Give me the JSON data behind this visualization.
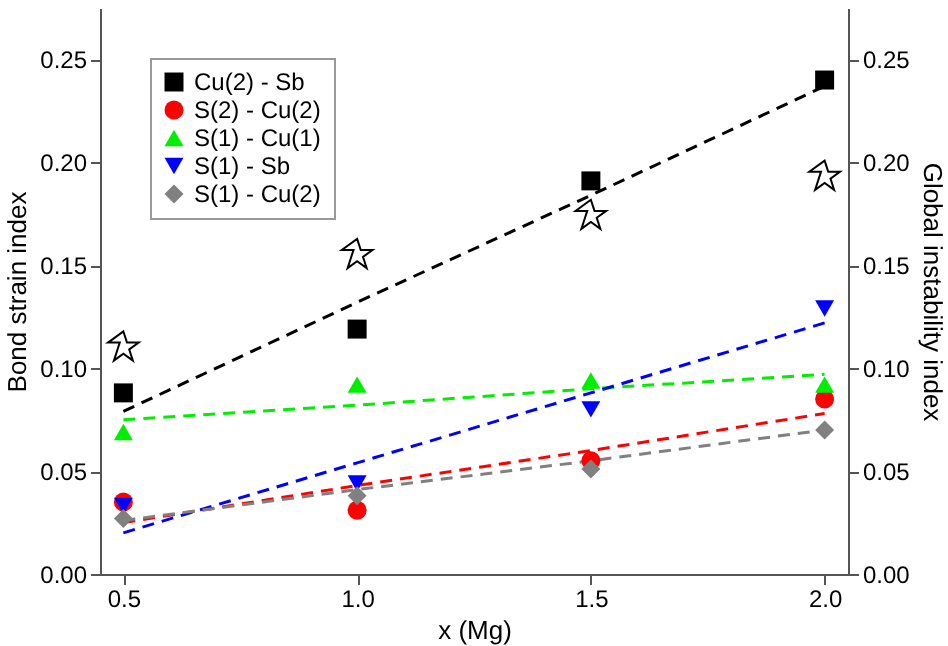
{
  "chart_data": {
    "type": "scatter",
    "xlabel": "x (Mg)",
    "ylabel": "Bond strain index",
    "y2label": "Global instability index",
    "x": [
      0.5,
      1.0,
      1.5,
      2.0
    ],
    "xlim": [
      0.45,
      2.05
    ],
    "xticks": [
      {
        "value": 0.5,
        "label": "0.5"
      },
      {
        "value": 1,
        "label": "1.0"
      },
      {
        "value": 1.5,
        "label": "1.5"
      },
      {
        "value": 2,
        "label": "2.0"
      }
    ],
    "ylim": [
      0,
      0.275
    ],
    "yticks": [
      {
        "value": 0,
        "label": "0.00"
      },
      {
        "value": 0.05,
        "label": "0.05"
      },
      {
        "value": 0.1,
        "label": "0.10"
      },
      {
        "value": 0.15,
        "label": "0.15"
      },
      {
        "value": 0.2,
        "label": "0.20"
      },
      {
        "value": 0.25,
        "label": "0.25"
      }
    ],
    "y2lim": [
      0,
      0.275
    ],
    "y2ticks": [
      {
        "value": 0,
        "label": "0.00"
      },
      {
        "value": 0.05,
        "label": "0.05"
      },
      {
        "value": 0.1,
        "label": "0.10"
      },
      {
        "value": 0.15,
        "label": "0.15"
      },
      {
        "value": 0.2,
        "label": "0.20"
      },
      {
        "value": 0.25,
        "label": "0.25"
      }
    ],
    "grid": false,
    "legend": "top left",
    "series": [
      {
        "name": "Cu(2) - Sb",
        "marker": "square",
        "color": "#000000",
        "values": [
          0.088,
          0.119,
          0.191,
          0.24
        ]
      },
      {
        "name": "S(2) - Cu(2)",
        "marker": "circle",
        "color": "#ff0000",
        "values": [
          0.035,
          0.031,
          0.055,
          0.085
        ]
      },
      {
        "name": "S(1) - Cu(1)",
        "marker": "triangle",
        "color": "#00ee00",
        "values": [
          0.069,
          0.092,
          0.094,
          0.092
        ]
      },
      {
        "name": "S(1) - Sb",
        "marker": "triangle-down",
        "color": "#0000ff",
        "values": [
          0.033,
          0.044,
          0.08,
          0.129
        ]
      },
      {
        "name": "S(1) - Cu(2)",
        "marker": "diamond",
        "color": "#808080",
        "values": [
          0.027,
          0.038,
          0.051,
          0.07
        ]
      },
      {
        "marker": "star",
        "axis": "y2",
        "color": "#000000",
        "values": [
          0.11,
          0.155,
          0.174,
          0.193
        ]
      },
      {
        "type": "line",
        "line_style": "dashed",
        "color": "#000000",
        "values": [
          0.079,
          0.132,
          0.184,
          0.237
        ]
      },
      {
        "type": "line",
        "line_style": "dashed",
        "color": "#ff0000",
        "values": [
          0.025,
          0.043,
          0.06,
          0.078
        ]
      },
      {
        "type": "line",
        "line_style": "dashed",
        "color": "#00ee00",
        "values": [
          0.075,
          0.082,
          0.09,
          0.097
        ]
      },
      {
        "type": "line",
        "line_style": "dashed",
        "color": "#0000ff",
        "values": [
          0.02,
          0.054,
          0.088,
          0.122
        ]
      },
      {
        "type": "line",
        "line_style": "dashed",
        "color": "#808080",
        "values": [
          0.026,
          0.041,
          0.055,
          0.07
        ]
      }
    ]
  }
}
